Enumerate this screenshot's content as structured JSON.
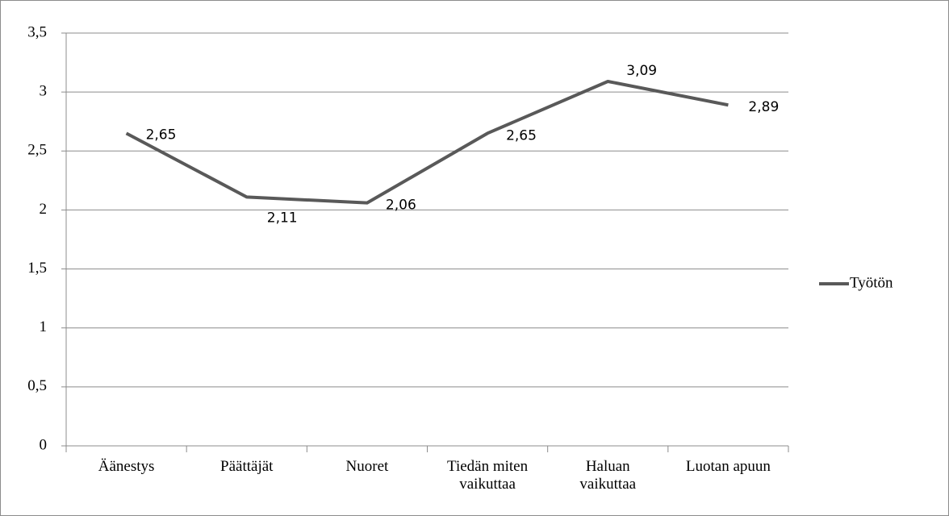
{
  "chart_data": {
    "type": "line",
    "categories": [
      "Äänestys",
      "Päättäjät",
      "Nuoret",
      "Tiedän miten vaikuttaa",
      "Haluan vaikuttaa",
      "Luotan apuun"
    ],
    "series": [
      {
        "name": "Työtön",
        "color": "#595959",
        "values": [
          2.65,
          2.11,
          2.06,
          2.65,
          3.09,
          2.89
        ],
        "value_labels": [
          "2,65",
          "2,11",
          "2,06",
          "2,65",
          "3,09",
          "2,89"
        ]
      }
    ],
    "ylim": [
      0,
      3.5
    ],
    "yticks": [
      0,
      {
        "value": 0.5,
        "label": "0,5"
      },
      1,
      {
        "value": 1.5,
        "label": "1,5"
      },
      2,
      {
        "value": 2.5,
        "label": "2,5"
      },
      3,
      {
        "value": 3.5,
        "label": "3,5"
      }
    ],
    "grid": true,
    "legend": "right"
  }
}
